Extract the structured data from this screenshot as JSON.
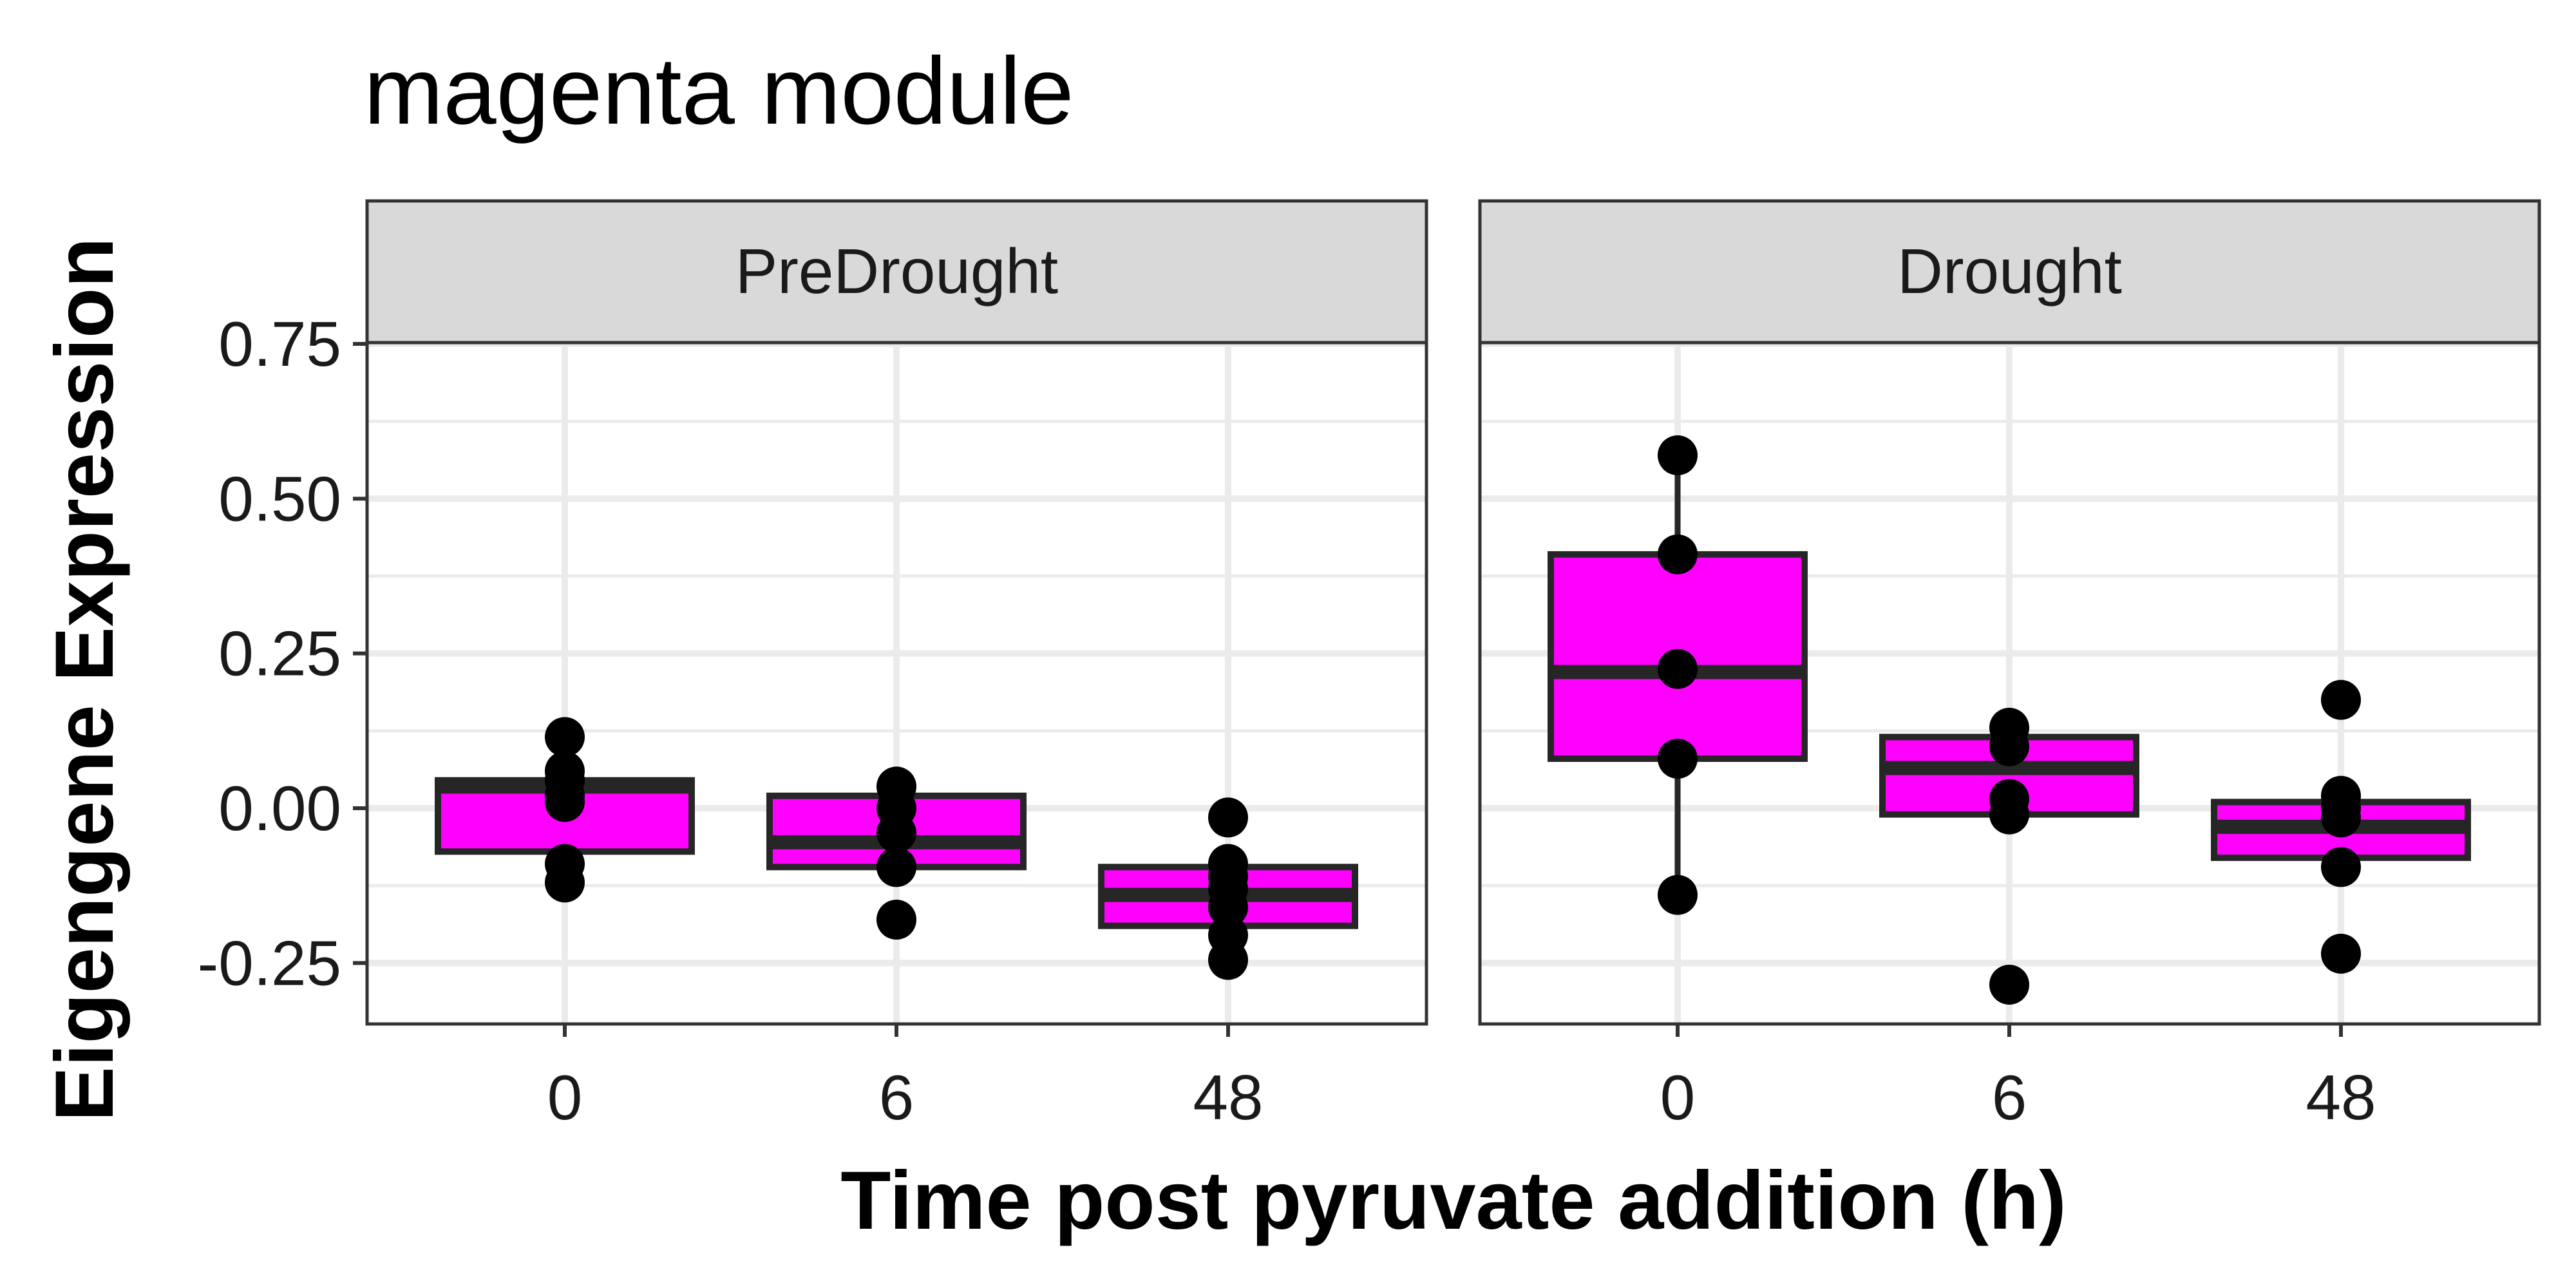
{
  "chart_data": {
    "type": "boxplot",
    "title": "magenta module",
    "xlabel": "Time post pyruvate addition (h)",
    "ylabel": "Eigengene Expression",
    "ylim": [
      -0.35,
      0.75
    ],
    "yticks": [
      -0.25,
      0.0,
      0.25,
      0.5,
      0.75
    ],
    "ytick_labels": [
      "-0.25",
      "0.00",
      "0.25",
      "0.50",
      "0.75"
    ],
    "categories": [
      "0",
      "6",
      "48"
    ],
    "grid": true,
    "box_fill": "#FF00FF",
    "box_outline": "#262626",
    "panels": [
      {
        "name": "PreDrought",
        "boxes": [
          {
            "category": "0",
            "q1": -0.07,
            "median": 0.035,
            "q3": 0.045,
            "whisker_low": -0.07,
            "whisker_high": 0.045,
            "points": [
              0.115,
              0.06,
              0.045,
              0.02,
              0.01,
              -0.09,
              -0.12
            ]
          },
          {
            "category": "6",
            "q1": -0.095,
            "median": -0.055,
            "q3": 0.02,
            "whisker_low": -0.095,
            "whisker_high": 0.02,
            "points": [
              0.035,
              0.0,
              -0.04,
              -0.095,
              -0.18
            ]
          },
          {
            "category": "48",
            "q1": -0.19,
            "median": -0.14,
            "q3": -0.095,
            "whisker_low": -0.19,
            "whisker_high": -0.095,
            "points": [
              -0.015,
              -0.09,
              -0.11,
              -0.13,
              -0.16,
              -0.205,
              -0.245
            ]
          }
        ]
      },
      {
        "name": "Drought",
        "boxes": [
          {
            "category": "0",
            "q1": 0.08,
            "median": 0.22,
            "q3": 0.41,
            "whisker_low": -0.14,
            "whisker_high": 0.57,
            "points": [
              0.57,
              0.41,
              0.225,
              0.08,
              -0.14
            ]
          },
          {
            "category": "6",
            "q1": -0.01,
            "median": 0.065,
            "q3": 0.115,
            "whisker_low": -0.01,
            "whisker_high": 0.115,
            "points": [
              0.13,
              0.1,
              0.015,
              -0.01,
              -0.285
            ]
          },
          {
            "category": "48",
            "q1": -0.08,
            "median": -0.03,
            "q3": 0.01,
            "whisker_low": -0.08,
            "whisker_high": 0.01,
            "points": [
              0.175,
              0.02,
              0.0,
              -0.015,
              -0.095,
              -0.235
            ]
          }
        ]
      }
    ]
  }
}
